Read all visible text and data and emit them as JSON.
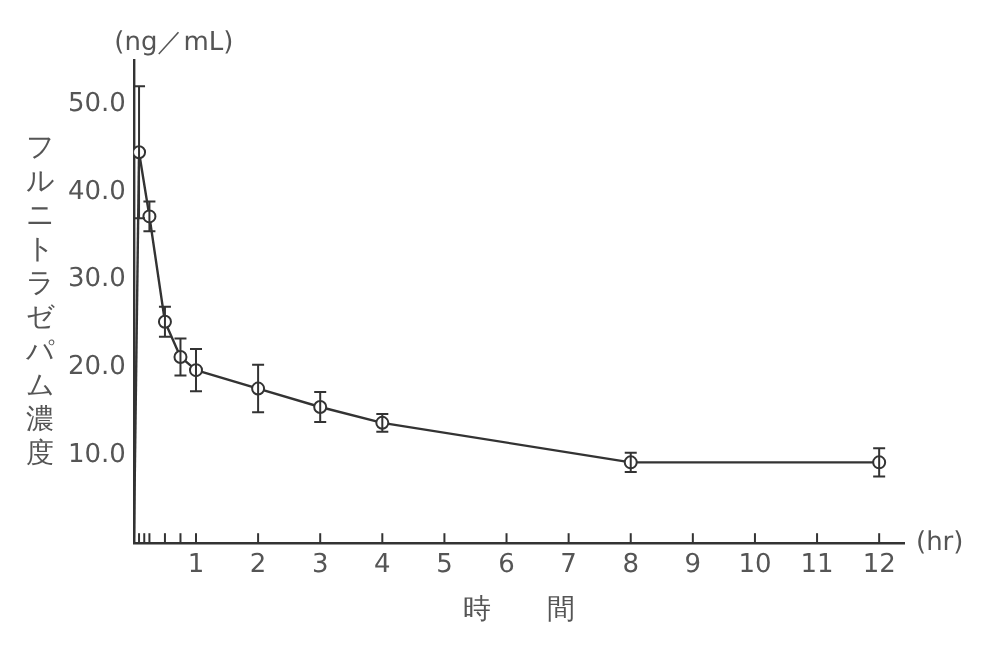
{
  "chart_data": {
    "type": "line",
    "xlabel": "時　　間",
    "ylabel": "フルニトラゼパム濃度",
    "annotations": [
      "(ng／mL)",
      "(hr)"
    ],
    "xlim": [
      0,
      12.4
    ],
    "ylim": [
      0,
      55
    ],
    "xticks": [
      {
        "value": 0.083,
        "label": null
      },
      {
        "value": 0.167,
        "label": null
      },
      {
        "value": 0.25,
        "label": null
      },
      {
        "value": 0.5,
        "label": null
      },
      {
        "value": 0.75,
        "label": null
      },
      1,
      2,
      3,
      4,
      5,
      6,
      7,
      8,
      9,
      10,
      11,
      12
    ],
    "yticks": [
      {
        "value": 10,
        "label": "10.0"
      },
      {
        "value": 20,
        "label": "20.0"
      },
      {
        "value": 30,
        "label": "30.0"
      },
      {
        "value": 40,
        "label": "40.0"
      },
      {
        "value": 50,
        "label": "50.0"
      }
    ],
    "grid": false,
    "legend": false,
    "marker": "circle",
    "line_style": "solid",
    "series": [
      {
        "color": "#333333",
        "x": [
          0.083,
          0.25,
          0.5,
          0.75,
          1,
          2,
          3,
          4,
          8,
          12
        ],
        "values": [
          44.5,
          37.2,
          25.2,
          21.2,
          19.7,
          17.6,
          15.5,
          13.7,
          9.2,
          9.2
        ],
        "errors": [
          7.5,
          1.7,
          1.7,
          2.1,
          2.4,
          2.7,
          1.7,
          1,
          1.1,
          1.6
        ]
      },
      {
        "color": "#333333",
        "marker": "none",
        "x": [
          0,
          0.083
        ],
        "values": [
          0,
          44.5
        ]
      }
    ]
  }
}
